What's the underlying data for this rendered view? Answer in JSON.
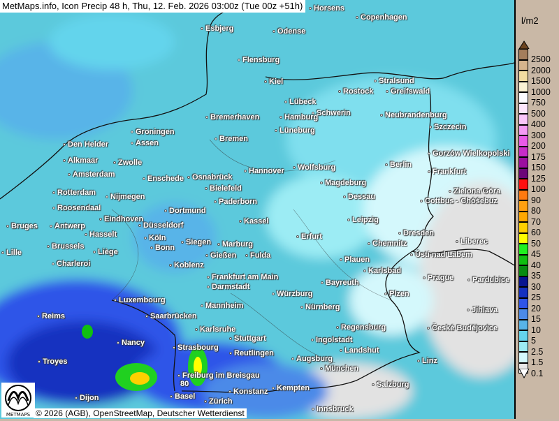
{
  "title": "MetMaps.info, Icon Precip 48 h, Thu, 12. Feb. 2026 03:00z (Tue 00z +51h)",
  "copyright": "© 2026 (AGB), OpenStreetMap, Deutscher Wetterdienst",
  "logo_text": "METMAPS",
  "map_label": "80",
  "legend": {
    "unit": "l/m2",
    "levels": [
      {
        "value": "2500",
        "color": "#a47e5c"
      },
      {
        "value": "2000",
        "color": "#d6b48c"
      },
      {
        "value": "1500",
        "color": "#f2dca0"
      },
      {
        "value": "1000",
        "color": "#fbf2d4"
      },
      {
        "value": "750",
        "color": "#fcfbff"
      },
      {
        "value": "500",
        "color": "#fde6fd"
      },
      {
        "value": "400",
        "color": "#fbc6fb"
      },
      {
        "value": "300",
        "color": "#f59af5"
      },
      {
        "value": "200",
        "color": "#ea5ae8"
      },
      {
        "value": "175",
        "color": "#c82cc8"
      },
      {
        "value": "150",
        "color": "#9c0ea0"
      },
      {
        "value": "125",
        "color": "#6c0678"
      },
      {
        "value": "100",
        "color": "#ff1010"
      },
      {
        "value": "90",
        "color": "#ff7a10"
      },
      {
        "value": "80",
        "color": "#ffa010"
      },
      {
        "value": "70",
        "color": "#ffa800"
      },
      {
        "value": "60",
        "color": "#ffd000"
      },
      {
        "value": "50",
        "color": "#ffff00"
      },
      {
        "value": "45",
        "color": "#20f020"
      },
      {
        "value": "40",
        "color": "#10c010"
      },
      {
        "value": "35",
        "color": "#088c10"
      },
      {
        "value": "30",
        "color": "#081490"
      },
      {
        "value": "25",
        "color": "#1430c0"
      },
      {
        "value": "20",
        "color": "#2e54e8"
      },
      {
        "value": "15",
        "color": "#4c8ae8"
      },
      {
        "value": "10",
        "color": "#58b4e8"
      },
      {
        "value": "5",
        "color": "#64d4ec"
      },
      {
        "value": "2.5",
        "color": "#9cecf4"
      },
      {
        "value": "1.5",
        "color": "#d4f8fc"
      },
      {
        "value": "0.1",
        "color": "#e8e8e8"
      }
    ]
  },
  "cities": [
    "Horsens",
    "Copenhagen",
    "Esbjerg",
    "Odense",
    "Flensburg",
    "Kiel",
    "Stralsund",
    "Rostock",
    "Greifswald",
    "Lübeck",
    "Schwerin",
    "Neubrandenburg",
    "Szczecin",
    "Bremerhaven",
    "Hamburg",
    "Groningen",
    "Assen",
    "Lüneburg",
    "Bremen",
    "Den Helder",
    "Alkmaar",
    "Zwolle",
    "Amsterdam",
    "Gorzów Wielkopolski",
    "Berlin",
    "Enschede",
    "Osnabrück",
    "Hannover",
    "Wolfsburg",
    "Frankfurt",
    "Magdeburg",
    "Rotterdam",
    "Nijmegen",
    "Bielefeld",
    "Zielona Góra",
    "Dessau",
    "Cottbus - Chóśebuz",
    "Paderborn",
    "Roosendaal",
    "Eindhoven",
    "Dortmund",
    "Bruges",
    "Antwerp",
    "Düsseldorf",
    "Kassel",
    "Leipzig",
    "Dresden",
    "Hasselt",
    "Köln",
    "Erfurt",
    "Brussels",
    "Siegen",
    "Marburg",
    "Chemnitz",
    "Ústí nad Labem",
    "Liberec",
    "Lille",
    "Bonn",
    "Liège",
    "Gießen",
    "Fulda",
    "Plauen",
    "Charleroi",
    "Koblenz",
    "Karlsbad",
    "Frankfurt am Main",
    "Prague",
    "Pardubice",
    "Darmstadt",
    "Würzburg",
    "Bayreuth",
    "Plzen",
    "Luxembourg",
    "Mannheim",
    "Nürnberg",
    "Jihlava",
    "Reims",
    "Saarbrücken",
    "Regensburg",
    "České Budějovice",
    "Karlsruhe",
    "Stuttgart",
    "Ingolstadt",
    "Nancy",
    "Strasbourg",
    "Landshut",
    "Reutlingen",
    "Augsburg",
    "Troyes",
    "Linz",
    "München",
    "Freiburg im Breisgau",
    "Kempten",
    "Salzburg",
    "Basel",
    "Konstanz",
    "Zürich",
    "Innsbruck",
    "Dijon"
  ]
}
